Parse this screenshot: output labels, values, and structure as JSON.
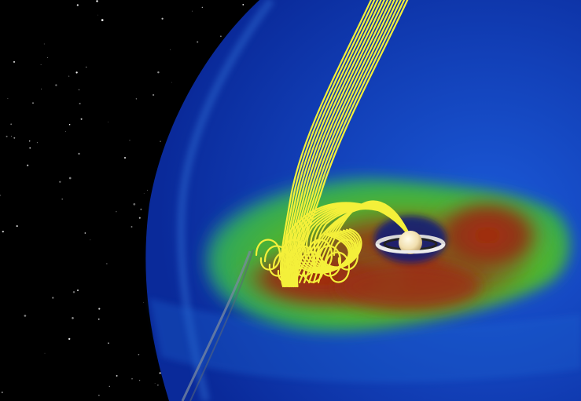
{
  "scene": {
    "kind": "space-simulation-visualization",
    "objects": [
      "starfield",
      "magnetosphere-bow-shock",
      "plasma-density-field",
      "magnetic-field-lines",
      "ringed-planet",
      "spacecraft-trajectory"
    ],
    "colors": {
      "space": "#000000",
      "magnetosphere_blue": "#0e3cc0",
      "magnetosphere_light": "#2a7be0",
      "plasma_green": "#3fc43a",
      "plasma_yellow": "#b8c22a",
      "plasma_red": "#9a2a12",
      "field_lines": "#f4f03a",
      "planet": "#f6e6b8",
      "rings": "#c8c8c8"
    }
  }
}
